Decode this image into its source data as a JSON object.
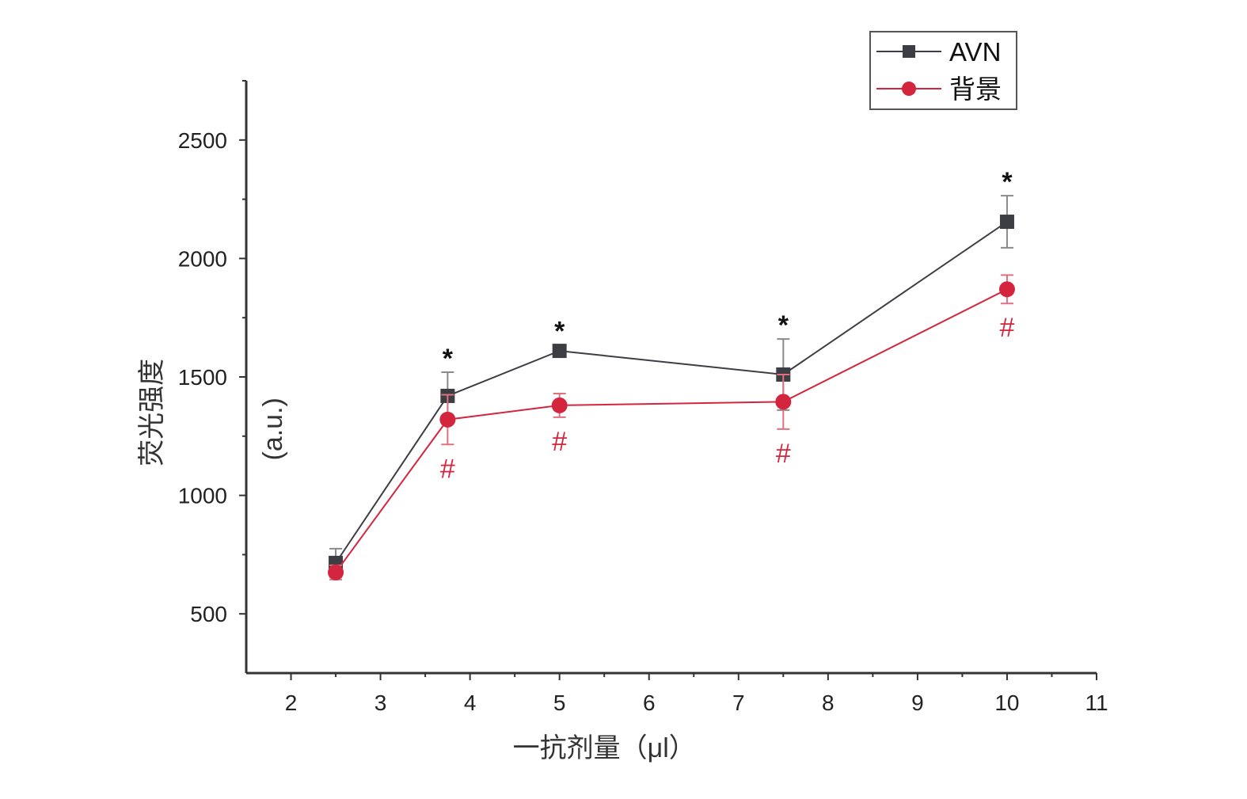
{
  "chart_data": {
    "type": "line",
    "xlabel": "一抗剂量（μl）",
    "ylabel": "荧光强度",
    "ylabel_unit": "(a.u.)",
    "xlim": [
      1.5,
      11
    ],
    "ylim": [
      250,
      2750
    ],
    "x_ticks": [
      2,
      3,
      4,
      5,
      6,
      7,
      8,
      9,
      10,
      11
    ],
    "y_ticks": [
      500,
      1000,
      1500,
      2000,
      2500
    ],
    "x": [
      2.5,
      3.75,
      5,
      7.5,
      10
    ],
    "grid": false,
    "legend_position": "top-right",
    "series": [
      {
        "name": "AVN",
        "color": "#3d3d44",
        "marker": "square",
        "values": [
          715,
          1420,
          1610,
          1510,
          2155
        ],
        "errors": [
          60,
          100,
          25,
          150,
          110
        ],
        "annotation": "*",
        "annotation_color": "#111111",
        "annotated_points": [
          1,
          2,
          3,
          4
        ]
      },
      {
        "name": "背景",
        "color": "#d3263e",
        "marker": "circle",
        "values": [
          675,
          1320,
          1380,
          1395,
          1870
        ],
        "errors": [
          30,
          105,
          50,
          115,
          60
        ],
        "annotation": "#",
        "annotation_color": "#d3263e",
        "annotated_points": [
          1,
          2,
          3,
          4
        ]
      }
    ]
  }
}
